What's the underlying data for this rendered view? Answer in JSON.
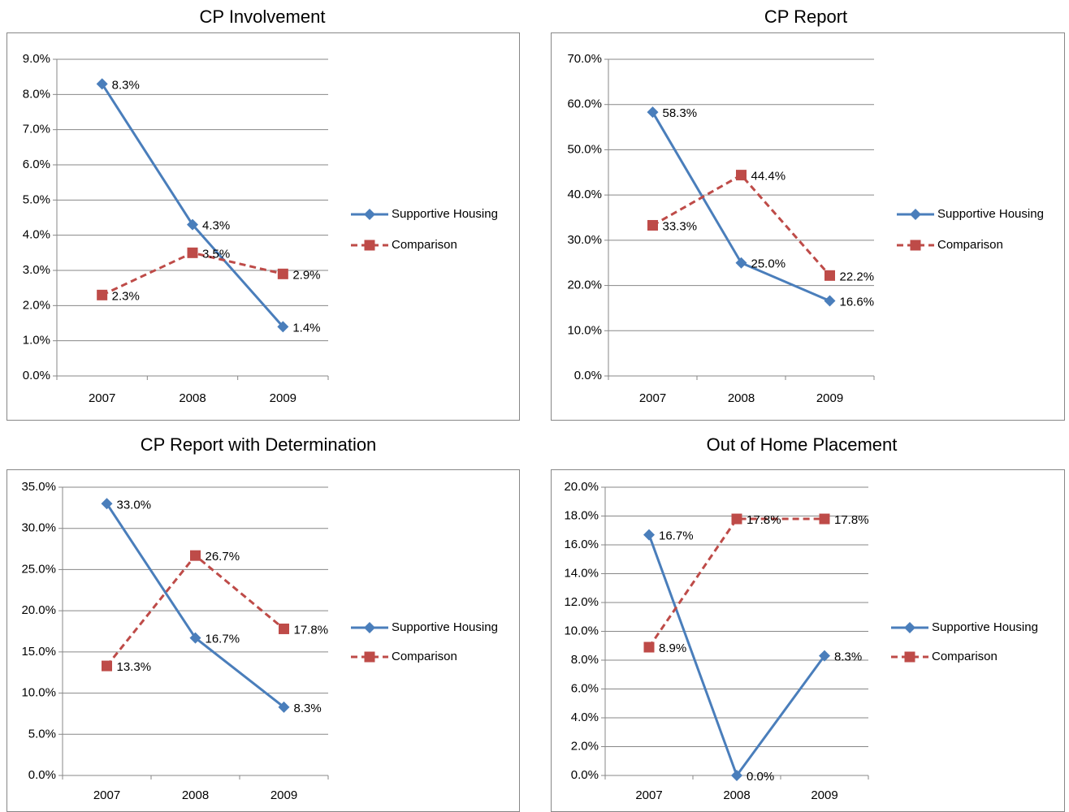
{
  "chart_data": [
    {
      "type": "line",
      "title": "CP Involvement",
      "categories": [
        "2007",
        "2008",
        "2009"
      ],
      "ylim": [
        0,
        9
      ],
      "yticks": [
        {
          "value": 0,
          "label": "0.0%"
        },
        {
          "value": 1,
          "label": "1.0%"
        },
        {
          "value": 2,
          "label": "2.0%"
        },
        {
          "value": 3,
          "label": "3.0%"
        },
        {
          "value": 4,
          "label": "4.0%"
        },
        {
          "value": 5,
          "label": "5.0%"
        },
        {
          "value": 6,
          "label": "6.0%"
        },
        {
          "value": 7,
          "label": "7.0%"
        },
        {
          "value": 8,
          "label": "8.0%"
        },
        {
          "value": 9,
          "label": "9.0%"
        }
      ],
      "grid": true,
      "legend": "right",
      "series": [
        {
          "name": "Supportive Housing",
          "color": "#4a7ebb",
          "marker": "diamond",
          "dashed": false,
          "values": [
            8.3,
            4.3,
            1.4
          ],
          "value_labels": [
            "8.3%",
            "4.3%",
            "1.4%"
          ]
        },
        {
          "name": "Comparison",
          "color": "#be4b48",
          "marker": "square",
          "dashed": true,
          "values": [
            2.3,
            3.5,
            2.9
          ],
          "value_labels": [
            "2.3%",
            "3.5%",
            "2.9%"
          ]
        }
      ]
    },
    {
      "type": "line",
      "title": "CP Report",
      "categories": [
        "2007",
        "2008",
        "2009"
      ],
      "ylim": [
        0,
        70
      ],
      "yticks": [
        {
          "value": 0,
          "label": "0.0%"
        },
        {
          "value": 10,
          "label": "10.0%"
        },
        {
          "value": 20,
          "label": "20.0%"
        },
        {
          "value": 30,
          "label": "30.0%"
        },
        {
          "value": 40,
          "label": "40.0%"
        },
        {
          "value": 50,
          "label": "50.0%"
        },
        {
          "value": 60,
          "label": "60.0%"
        },
        {
          "value": 70,
          "label": "70.0%"
        }
      ],
      "grid": true,
      "legend": "right",
      "series": [
        {
          "name": "Supportive Housing",
          "color": "#4a7ebb",
          "marker": "diamond",
          "dashed": false,
          "values": [
            58.3,
            25.0,
            16.6
          ],
          "value_labels": [
            "58.3%",
            "25.0%",
            "16.6%"
          ]
        },
        {
          "name": "Comparison",
          "color": "#be4b48",
          "marker": "square",
          "dashed": true,
          "values": [
            33.3,
            44.4,
            22.2
          ],
          "value_labels": [
            "33.3%",
            "44.4%",
            "22.2%"
          ]
        }
      ]
    },
    {
      "type": "line",
      "title": "CP Report with Determination",
      "categories": [
        "2007",
        "2008",
        "2009"
      ],
      "ylim": [
        0,
        35
      ],
      "yticks": [
        {
          "value": 0,
          "label": "0.0%"
        },
        {
          "value": 5,
          "label": "5.0%"
        },
        {
          "value": 10,
          "label": "10.0%"
        },
        {
          "value": 15,
          "label": "15.0%"
        },
        {
          "value": 20,
          "label": "20.0%"
        },
        {
          "value": 25,
          "label": "25.0%"
        },
        {
          "value": 30,
          "label": "30.0%"
        },
        {
          "value": 35,
          "label": "35.0%"
        }
      ],
      "grid": true,
      "legend": "right",
      "series": [
        {
          "name": "Supportive Housing",
          "color": "#4a7ebb",
          "marker": "diamond",
          "dashed": false,
          "values": [
            33.0,
            16.7,
            8.3
          ],
          "value_labels": [
            "33.0%",
            "16.7%",
            "8.3%"
          ]
        },
        {
          "name": "Comparison",
          "color": "#be4b48",
          "marker": "square",
          "dashed": true,
          "values": [
            13.3,
            26.7,
            17.8
          ],
          "value_labels": [
            "13.3%",
            "26.7%",
            "17.8%"
          ]
        }
      ]
    },
    {
      "type": "line",
      "title": "Out of Home Placement",
      "categories": [
        "2007",
        "2008",
        "2009"
      ],
      "ylim": [
        0,
        20
      ],
      "yticks": [
        {
          "value": 0,
          "label": "0.0%"
        },
        {
          "value": 2,
          "label": "2.0%"
        },
        {
          "value": 4,
          "label": "4.0%"
        },
        {
          "value": 6,
          "label": "6.0%"
        },
        {
          "value": 8,
          "label": "8.0%"
        },
        {
          "value": 10,
          "label": "10.0%"
        },
        {
          "value": 12,
          "label": "12.0%"
        },
        {
          "value": 14,
          "label": "14.0%"
        },
        {
          "value": 16,
          "label": "16.0%"
        },
        {
          "value": 18,
          "label": "18.0%"
        },
        {
          "value": 20,
          "label": "20.0%"
        }
      ],
      "grid": true,
      "legend": "right",
      "series": [
        {
          "name": "Supportive Housing",
          "color": "#4a7ebb",
          "marker": "diamond",
          "dashed": false,
          "values": [
            16.7,
            0.0,
            8.3
          ],
          "value_labels": [
            "16.7%",
            "0.0%",
            "8.3%"
          ]
        },
        {
          "name": "Comparison",
          "color": "#be4b48",
          "marker": "square",
          "dashed": true,
          "values": [
            8.9,
            17.8,
            17.8
          ],
          "value_labels": [
            "8.9%",
            "17.8%",
            "17.8%"
          ]
        }
      ]
    }
  ]
}
